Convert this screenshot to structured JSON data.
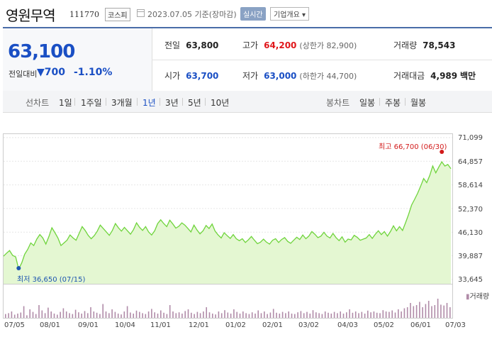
{
  "header": {
    "name": "영원무역",
    "code": "111770",
    "market": "코스피",
    "date": "2023.07.05 기준(장마감)",
    "realtime": "실시간",
    "company_info": "기업개요"
  },
  "summary": {
    "price": "63,100",
    "change_label": "전일대비",
    "change_arrow": "▼",
    "change_value": "700",
    "change_pct": "-1.10%",
    "prev_close_label": "전일",
    "prev_close": "63,800",
    "high_label": "고가",
    "high": "64,200",
    "upper_limit": "(상한가 82,900)",
    "volume_label": "거래량",
    "volume": "78,543",
    "open_label": "시가",
    "open": "63,700",
    "low_label": "저가",
    "low": "63,000",
    "lower_limit": "(하한가 44,700)",
    "amount_label": "거래대금",
    "amount": "4,989",
    "amount_unit": "백만"
  },
  "tabs": {
    "line_label": "선차트",
    "periods": [
      "1일",
      "1주일",
      "3개월",
      "1년",
      "3년",
      "5년",
      "10년"
    ],
    "active": "1년",
    "candle_label": "봉차트",
    "candle_periods": [
      "일봉",
      "주봉",
      "월봉"
    ]
  },
  "colors": {
    "accent": "#1a4fc4",
    "up": "#e0161a",
    "line": "#6fd43c",
    "fill": "#e4f7d2",
    "volume": "#b08ba8"
  },
  "chart_data": {
    "type": "area",
    "y_ticks": [
      "71,099",
      "64,857",
      "58,614",
      "52,370",
      "46,130",
      "39,887",
      "33,645"
    ],
    "ylim": [
      33645,
      71099
    ],
    "x_ticks": [
      "07/05",
      "08/01",
      "09/01",
      "10/04",
      "11/01",
      "12/01",
      "01/02",
      "02/01",
      "03/02",
      "04/03",
      "05/02",
      "06/01",
      "07/03"
    ],
    "high_label": "최고 66,700 (06/30)",
    "low_label": "최저 36,650 (07/15)",
    "volume_legend": "거래량",
    "series": [
      {
        "values": [
          40000,
          40800,
          41500,
          40200,
          39800,
          36650,
          38200,
          40500,
          41800,
          43500,
          42800,
          44500,
          45700,
          44800,
          43200,
          45200,
          47500,
          46200,
          44800,
          42800,
          43500,
          44200,
          45600,
          44800,
          44200,
          46000,
          47800,
          46800,
          45500,
          44600,
          45400,
          46600,
          48200,
          47300,
          46400,
          45500,
          46800,
          48600,
          47500,
          46600,
          47600,
          46700,
          45800,
          47000,
          48800,
          47600,
          46800,
          47800,
          46400,
          45600,
          46700,
          48600,
          49600,
          48600,
          47800,
          49500,
          48500,
          47400,
          47900,
          48800,
          48200,
          47300,
          46400,
          48200,
          46900,
          45900,
          46700,
          48100,
          47300,
          48500,
          46600,
          45600,
          44800,
          46200,
          45400,
          44700,
          45700,
          44600,
          44100,
          44600,
          43600,
          44300,
          45200,
          44200,
          43300,
          43700,
          44500,
          43700,
          43200,
          44200,
          44600,
          43600,
          44400,
          44900,
          43900,
          43400,
          44200,
          45000,
          44400,
          45600,
          44600,
          45300,
          46500,
          45800,
          44900,
          45300,
          46300,
          45300,
          44800,
          46000,
          44900,
          44100,
          45100,
          43700,
          44500,
          44300,
          45500,
          45000,
          44200,
          44500,
          44800,
          45700,
          44700,
          45800,
          46700,
          45700,
          46500,
          45300,
          46500,
          48000,
          46700,
          47800,
          46800,
          48800,
          51000,
          53500,
          55000,
          56600,
          58500,
          60500,
          59400,
          61300,
          63800,
          62000,
          63500,
          64900,
          63800,
          64200,
          63100
        ]
      }
    ],
    "volume": [
      0.18,
      0.22,
      0.3,
      0.15,
      0.2,
      0.25,
      0.55,
      0.12,
      0.4,
      0.28,
      0.18,
      0.6,
      0.35,
      0.22,
      0.48,
      0.3,
      0.2,
      0.15,
      0.28,
      0.45,
      0.3,
      0.22,
      0.18,
      0.38,
      0.26,
      0.2,
      0.32,
      0.22,
      0.5,
      0.3,
      0.24,
      0.18,
      0.65,
      0.3,
      0.22,
      0.4,
      0.28,
      0.2,
      0.16,
      0.3,
      0.55,
      0.25,
      0.2,
      0.34,
      0.28,
      0.22,
      0.18,
      0.3,
      0.42,
      0.26,
      0.2,
      0.35,
      0.24,
      0.18,
      0.6,
      0.3,
      0.22,
      0.26,
      0.2,
      0.32,
      0.4,
      0.24,
      0.18,
      0.28,
      0.22,
      0.3,
      0.5,
      0.26,
      0.2,
      0.16,
      0.3,
      0.22,
      0.36,
      0.25,
      0.2,
      0.4,
      0.28,
      0.2,
      0.3,
      0.22,
      0.18,
      0.26,
      0.2,
      0.35,
      0.22,
      0.3,
      0.18,
      0.25,
      0.42,
      0.24,
      0.2,
      0.28,
      0.22,
      0.3,
      0.2,
      0.18,
      0.26,
      0.32,
      0.22,
      0.28,
      0.2,
      0.36,
      0.26,
      0.22,
      0.18,
      0.3,
      0.24,
      0.2,
      0.28,
      0.22,
      0.3,
      0.2,
      0.26,
      0.4,
      0.24,
      0.3,
      0.22,
      0.28,
      0.2,
      0.34,
      0.26,
      0.3,
      0.24,
      0.22,
      0.36,
      0.3,
      0.28,
      0.35,
      0.25,
      0.4,
      0.3,
      0.45,
      0.5,
      0.7,
      0.55,
      0.6,
      0.75,
      0.5,
      0.65,
      0.8,
      0.55,
      0.6,
      0.9,
      0.62,
      0.58,
      0.7,
      0.5
    ]
  }
}
